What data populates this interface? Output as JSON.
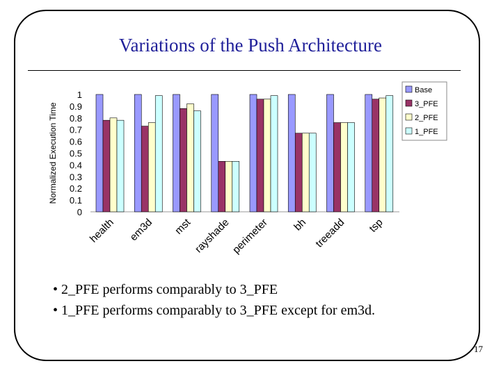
{
  "slide": {
    "title": "Variations of the Push Architecture",
    "bullets": [
      "• 2_PFE performs comparably to 3_PFE",
      "• 1_PFE performs comparably to 3_PFE except for em3d."
    ],
    "page_number": "17"
  },
  "chart_data": {
    "type": "bar",
    "title": "",
    "xlabel": "",
    "ylabel": "Normalized Execution Time",
    "ylim": [
      0,
      1
    ],
    "yticks": [
      "0",
      "0.1",
      "0.2",
      "0.3",
      "0.4",
      "0.5",
      "0.6",
      "0.7",
      "0.8",
      "0.9",
      "1"
    ],
    "grid": false,
    "legend_position": "right",
    "categories": [
      "health",
      "em3d",
      "mst",
      "rayshade",
      "perimeter",
      "bh",
      "treeadd",
      "tsp"
    ],
    "series": [
      {
        "name": "Base",
        "color": "#9999ff",
        "values": [
          1,
          1,
          1,
          1,
          1,
          1,
          1,
          1
        ]
      },
      {
        "name": "3_PFE",
        "color": "#993366",
        "values": [
          0.78,
          0.73,
          0.88,
          0.43,
          0.96,
          0.67,
          0.76,
          0.96
        ]
      },
      {
        "name": "2_PFE",
        "color": "#ffffcc",
        "values": [
          0.8,
          0.76,
          0.92,
          0.43,
          0.96,
          0.67,
          0.76,
          0.97
        ]
      },
      {
        "name": "1_PFE",
        "color": "#ccffff",
        "values": [
          0.78,
          0.99,
          0.86,
          0.43,
          0.99,
          0.67,
          0.76,
          0.99
        ]
      }
    ]
  }
}
